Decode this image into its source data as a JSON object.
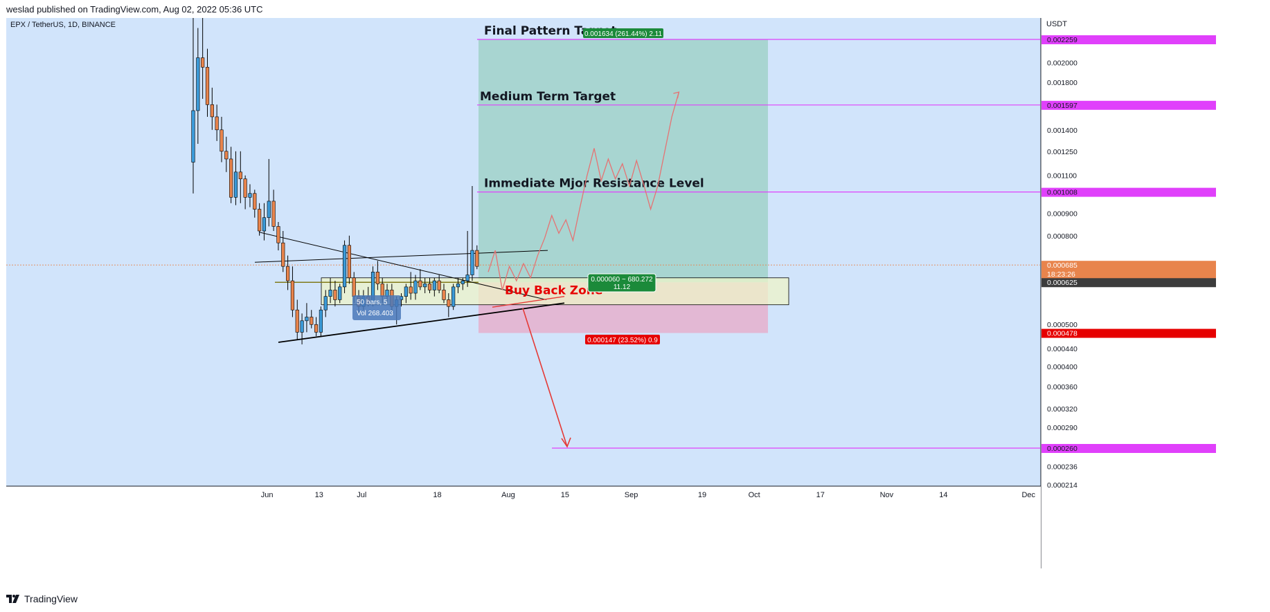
{
  "header": {
    "published": "weslad published on TradingView.com, Aug 02, 2022 05:36 UTC"
  },
  "footer": {
    "brand": "TradingView"
  },
  "colors": {
    "background": "#d1e4fb",
    "bull": "#3b9ad8",
    "bear": "#e8844c",
    "magenta": "#e040fb",
    "target_fill": "#a8d5d1",
    "stop_fill": "#e3b8d4",
    "zone_fill": "#eef4c8",
    "green_label": "#089981",
    "red_label": "#e60000"
  },
  "chart_data": {
    "type": "candlestick",
    "symbol": "EPX / TetherUS, 1D, BINANCE",
    "currency": "USDT",
    "y_scale": "log",
    "y_ticks": [
      "0.002000",
      "0.001800",
      "0.001400",
      "0.001250",
      "0.001100",
      "0.000900",
      "0.000800",
      "0.000500",
      "0.000440",
      "0.000400",
      "0.000360",
      "0.000320",
      "0.000290",
      "0.000236",
      "0.000214"
    ],
    "x_ticks": [
      "Jun",
      "13",
      "Jul",
      "18",
      "Aug",
      "15",
      "Sep",
      "19",
      "Oct",
      "17",
      "Nov",
      "14",
      "Dec"
    ],
    "price_labels": [
      {
        "value": "0.002259",
        "kind": "level"
      },
      {
        "value": "0.001597",
        "kind": "level"
      },
      {
        "value": "0.001008",
        "kind": "level"
      },
      {
        "value": "0.000685",
        "kind": "last",
        "countdown": "18:23:26"
      },
      {
        "value": "0.000625",
        "kind": "entry"
      },
      {
        "value": "0.000478",
        "kind": "stop"
      },
      {
        "value": "0.000260",
        "kind": "level"
      }
    ],
    "levels": [
      {
        "price": 0.002259,
        "label": "Final Pattern Target"
      },
      {
        "price": 0.001597,
        "label": "Medium Term Target"
      },
      {
        "price": 0.001008,
        "label": "Immediate Mjor Resistance Level"
      },
      {
        "price": 0.00026,
        "label": ""
      }
    ],
    "zone_label": "Buy Back Zone",
    "position": {
      "entry": 0.000625,
      "target": 0.002259,
      "stop": 0.000478,
      "target_text": "0.001634 (261.44%) 2.11",
      "stop_text": "0.000147 (23.52%) 0.9",
      "info_line1": "0.000060 ~ 680.272",
      "info_line2": "11.12"
    },
    "tooltip": {
      "line1": "50 bars, 5",
      "line2": "Vol 268.403"
    },
    "candles": [
      [
        0.00118,
        0.00268,
        0.001,
        0.00155
      ],
      [
        0.00155,
        0.0024,
        0.0013,
        0.00205
      ],
      [
        0.00205,
        0.0027,
        0.00165,
        0.00195
      ],
      [
        0.00195,
        0.00215,
        0.0015,
        0.0016
      ],
      [
        0.0016,
        0.00175,
        0.0014,
        0.0015
      ],
      [
        0.0015,
        0.0016,
        0.00132,
        0.0014
      ],
      [
        0.0014,
        0.0015,
        0.00118,
        0.00125
      ],
      [
        0.00125,
        0.00135,
        0.00112,
        0.0012
      ],
      [
        0.0012,
        0.00128,
        0.00095,
        0.00098
      ],
      [
        0.00098,
        0.00125,
        0.00094,
        0.00112
      ],
      [
        0.00112,
        0.00125,
        0.00095,
        0.00108
      ],
      [
        0.00108,
        0.0011,
        0.00092,
        0.00098
      ],
      [
        0.00098,
        0.00105,
        0.00093,
        0.001
      ],
      [
        0.001,
        0.00102,
        0.00088,
        0.00092
      ],
      [
        0.00092,
        0.00095,
        0.0008,
        0.00082
      ],
      [
        0.00082,
        0.00095,
        0.00078,
        0.00088
      ],
      [
        0.00088,
        0.0012,
        0.00084,
        0.00096
      ],
      [
        0.00096,
        0.00102,
        0.00082,
        0.00084
      ],
      [
        0.00084,
        0.00086,
        0.00074,
        0.00077
      ],
      [
        0.00077,
        0.00082,
        0.00066,
        0.00068
      ],
      [
        0.00068,
        0.00072,
        0.0006,
        0.00063
      ],
      [
        0.00063,
        0.00068,
        0.00052,
        0.00054
      ],
      [
        0.00054,
        0.00057,
        0.00046,
        0.00048
      ],
      [
        0.00048,
        0.00053,
        0.00045,
        0.00051
      ],
      [
        0.00051,
        0.00056,
        0.00048,
        0.00052
      ],
      [
        0.00052,
        0.00054,
        0.00049,
        0.0005
      ],
      [
        0.0005,
        0.00052,
        0.00047,
        0.00048
      ],
      [
        0.00048,
        0.00055,
        0.00047,
        0.00054
      ],
      [
        0.00054,
        0.0006,
        0.00052,
        0.00058
      ],
      [
        0.00058,
        0.00064,
        0.00056,
        0.0006
      ],
      [
        0.0006,
        0.00063,
        0.00055,
        0.00057
      ],
      [
        0.00057,
        0.00062,
        0.00056,
        0.00061
      ],
      [
        0.00061,
        0.00078,
        0.00059,
        0.00076
      ],
      [
        0.00076,
        0.0008,
        0.00062,
        0.00064
      ],
      [
        0.00064,
        0.00066,
        0.00056,
        0.00058
      ],
      [
        0.00058,
        0.0006,
        0.00053,
        0.00055
      ],
      [
        0.00055,
        0.0006,
        0.00054,
        0.00058
      ],
      [
        0.00058,
        0.00061,
        0.00055,
        0.00056
      ],
      [
        0.00056,
        0.00068,
        0.00055,
        0.00066
      ],
      [
        0.00066,
        0.0007,
        0.0006,
        0.00062
      ],
      [
        0.00062,
        0.00064,
        0.00056,
        0.00058
      ],
      [
        0.00058,
        0.00062,
        0.00056,
        0.0006
      ],
      [
        0.0006,
        0.00062,
        0.00053,
        0.00055
      ],
      [
        0.00055,
        0.00058,
        0.0005,
        0.00057
      ],
      [
        0.00057,
        0.00059,
        0.00055,
        0.00058
      ],
      [
        0.00058,
        0.00062,
        0.00056,
        0.00061
      ],
      [
        0.00061,
        0.00066,
        0.00057,
        0.00059
      ],
      [
        0.00059,
        0.00065,
        0.00057,
        0.00063
      ],
      [
        0.00063,
        0.00067,
        0.0006,
        0.00061
      ],
      [
        0.00061,
        0.00064,
        0.00059,
        0.00062
      ],
      [
        0.00062,
        0.00064,
        0.00059,
        0.0006
      ],
      [
        0.0006,
        0.00064,
        0.00058,
        0.00063
      ],
      [
        0.00063,
        0.00065,
        0.00059,
        0.0006
      ],
      [
        0.0006,
        0.00062,
        0.00056,
        0.00057
      ],
      [
        0.00057,
        0.00059,
        0.00052,
        0.00055
      ],
      [
        0.00055,
        0.00062,
        0.00054,
        0.00061
      ],
      [
        0.00061,
        0.00064,
        0.00059,
        0.00062
      ],
      [
        0.00062,
        0.00064,
        0.0006,
        0.00063
      ],
      [
        0.00063,
        0.00082,
        0.00061,
        0.00065
      ],
      [
        0.00065,
        0.00104,
        0.00063,
        0.00074
      ],
      [
        0.00074,
        0.00076,
        0.00067,
        0.00068
      ]
    ],
    "projection": [
      0.00066,
      0.00074,
      0.0006,
      0.00068,
      0.00063,
      0.00069,
      0.00064,
      0.00072,
      0.00079,
      0.00089,
      0.00081,
      0.00087,
      0.00078,
      0.00093,
      0.0011,
      0.00127,
      0.00107,
      0.0012,
      0.00108,
      0.00117,
      0.00104,
      0.00119,
      0.00105,
      0.00092,
      0.00104,
      0.00125,
      0.0015,
      0.00171
    ]
  }
}
